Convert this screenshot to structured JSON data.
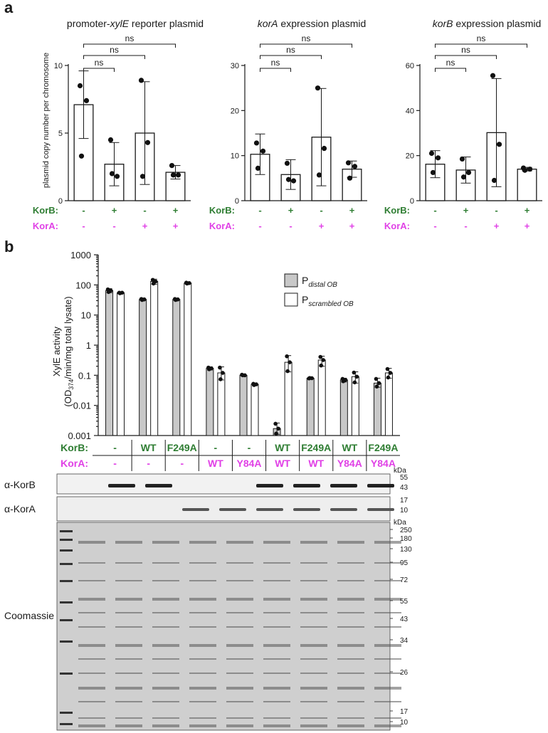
{
  "panel_a": {
    "letter": "a",
    "ylabel": "plasmid copy number per chromosome",
    "sig_label": "ns",
    "row_labels": {
      "korb": "KorB:",
      "kora": "KorA:"
    },
    "korb_signs": [
      "-",
      "+",
      "-",
      "+"
    ],
    "kora_signs": [
      "-",
      "-",
      "+",
      "+"
    ]
  },
  "panel_b": {
    "letter": "b",
    "ylabel_1": "XylE activity",
    "ylabel_2": "(OD374/min/mg total lysate)",
    "legend": {
      "p_distal": "P",
      "p_distal_sub": "distal OB",
      "p_scrambled": "P",
      "p_scrambled_sub": "scrambled OB"
    },
    "korb_label": "KorB:",
    "kora_label": "KorA:",
    "korb_values": [
      "-",
      "WT",
      "F249A",
      "-",
      "-",
      "WT",
      "F249A",
      "WT",
      "F249A"
    ],
    "kora_values": [
      "-",
      "-",
      "-",
      "WT",
      "Y84A",
      "WT",
      "WT",
      "Y84A",
      "Y84A"
    ],
    "blots": {
      "korb_label": "α-KorB",
      "kora_label": "α-KorA",
      "coomassie_label": "Coomassie",
      "kda": "kDa",
      "korb_markers": [
        "55",
        "43"
      ],
      "kora_markers": [
        "17",
        "10"
      ],
      "coomassie_markers": [
        "250",
        "180",
        "130",
        "95",
        "72",
        "55",
        "43",
        "34",
        "26",
        "17",
        "10"
      ]
    }
  },
  "colors": {
    "korb_green": "#2e7d32",
    "kora_magenta": "#e040e6",
    "bar_grey": "#c8c8c8"
  },
  "chart_data": [
    {
      "type": "bar",
      "title": "promoter-xylE reporter plasmid",
      "ylabel": "plasmid copy number per chromosome",
      "ylim": [
        0,
        10
      ],
      "yticks": [
        0,
        5,
        10
      ],
      "categories": [
        "KorB- KorA-",
        "KorB+ KorA-",
        "KorB- KorA+",
        "KorB+ KorA+"
      ],
      "values": [
        7.1,
        2.7,
        5.0,
        2.1
      ],
      "errors": [
        2.5,
        1.6,
        3.8,
        0.5
      ],
      "points": [
        [
          8.5,
          7.4,
          3.3
        ],
        [
          4.5,
          1.8,
          2.0
        ],
        [
          8.9,
          4.3,
          1.8
        ],
        [
          2.6,
          1.9,
          1.9
        ]
      ],
      "sig": [
        "ns",
        "ns",
        "ns"
      ]
    },
    {
      "type": "bar",
      "title": "korA expression plasmid",
      "ylim": [
        0,
        30
      ],
      "yticks": [
        0,
        10,
        20,
        30
      ],
      "categories": [
        "KorB- KorA-",
        "KorB+ KorA-",
        "KorB- KorA+",
        "KorB+ KorA+"
      ],
      "values": [
        10.3,
        5.8,
        14.1,
        7.0
      ],
      "errors": [
        4.5,
        3.3,
        10.8,
        1.8
      ],
      "points": [
        [
          12.8,
          11.0,
          7.2
        ],
        [
          8.3,
          4.4,
          4.7
        ],
        [
          25.0,
          11.6,
          5.7
        ],
        [
          8.4,
          7.6,
          5.0
        ]
      ],
      "sig": [
        "ns",
        "ns",
        "ns"
      ]
    },
    {
      "type": "bar",
      "title": "korB expression plasmid",
      "ylim": [
        0,
        60
      ],
      "yticks": [
        0,
        20,
        40,
        60
      ],
      "categories": [
        "KorB- KorA-",
        "KorB+ KorA-",
        "KorB- KorA+",
        "KorB+ KorA+"
      ],
      "values": [
        16.2,
        13.6,
        30.2,
        14.0
      ],
      "errors": [
        6.0,
        5.8,
        24.0,
        0.8
      ],
      "points": [
        [
          21.0,
          19.0,
          12.5
        ],
        [
          18.5,
          12.5,
          10.5
        ],
        [
          55.5,
          25.0,
          9.0
        ],
        [
          14.5,
          14.0,
          13.5
        ]
      ],
      "sig": [
        "ns",
        "ns",
        "ns"
      ]
    },
    {
      "type": "bar",
      "title": "",
      "ylabel": "XylE activity (OD374/min/mg total lysate)",
      "yscale": "log",
      "ylim": [
        0.001,
        1000
      ],
      "yticks": [
        "0.001",
        "0.01",
        "0.1",
        "1",
        "10",
        "100",
        "1000"
      ],
      "categories": [
        "-/-",
        "WT/-",
        "F249A/-",
        "-/WT",
        "-/Y84A",
        "WT/WT",
        "F249A/WT",
        "WT/Y84A",
        "F249A/Y84A"
      ],
      "series": [
        {
          "name": "P distal OB",
          "values": [
            65,
            33,
            33,
            0.17,
            0.1,
            0.0017,
            0.08,
            0.07,
            0.055
          ],
          "errors_low": [
            55,
            30,
            30,
            0.15,
            0.095,
            0.0011,
            0.077,
            0.06,
            0.04
          ],
          "errors_high": [
            75,
            36,
            36,
            0.19,
            0.11,
            0.0026,
            0.083,
            0.08,
            0.08
          ]
        },
        {
          "name": "P scrambled OB",
          "values": [
            55,
            130,
            115,
            0.12,
            0.05,
            0.27,
            0.32,
            0.09,
            0.12
          ],
          "errors_low": [
            50,
            105,
            105,
            0.07,
            0.045,
            0.13,
            0.2,
            0.055,
            0.08
          ],
          "errors_high": [
            58,
            155,
            125,
            0.19,
            0.055,
            0.45,
            0.43,
            0.13,
            0.17
          ]
        }
      ]
    }
  ]
}
